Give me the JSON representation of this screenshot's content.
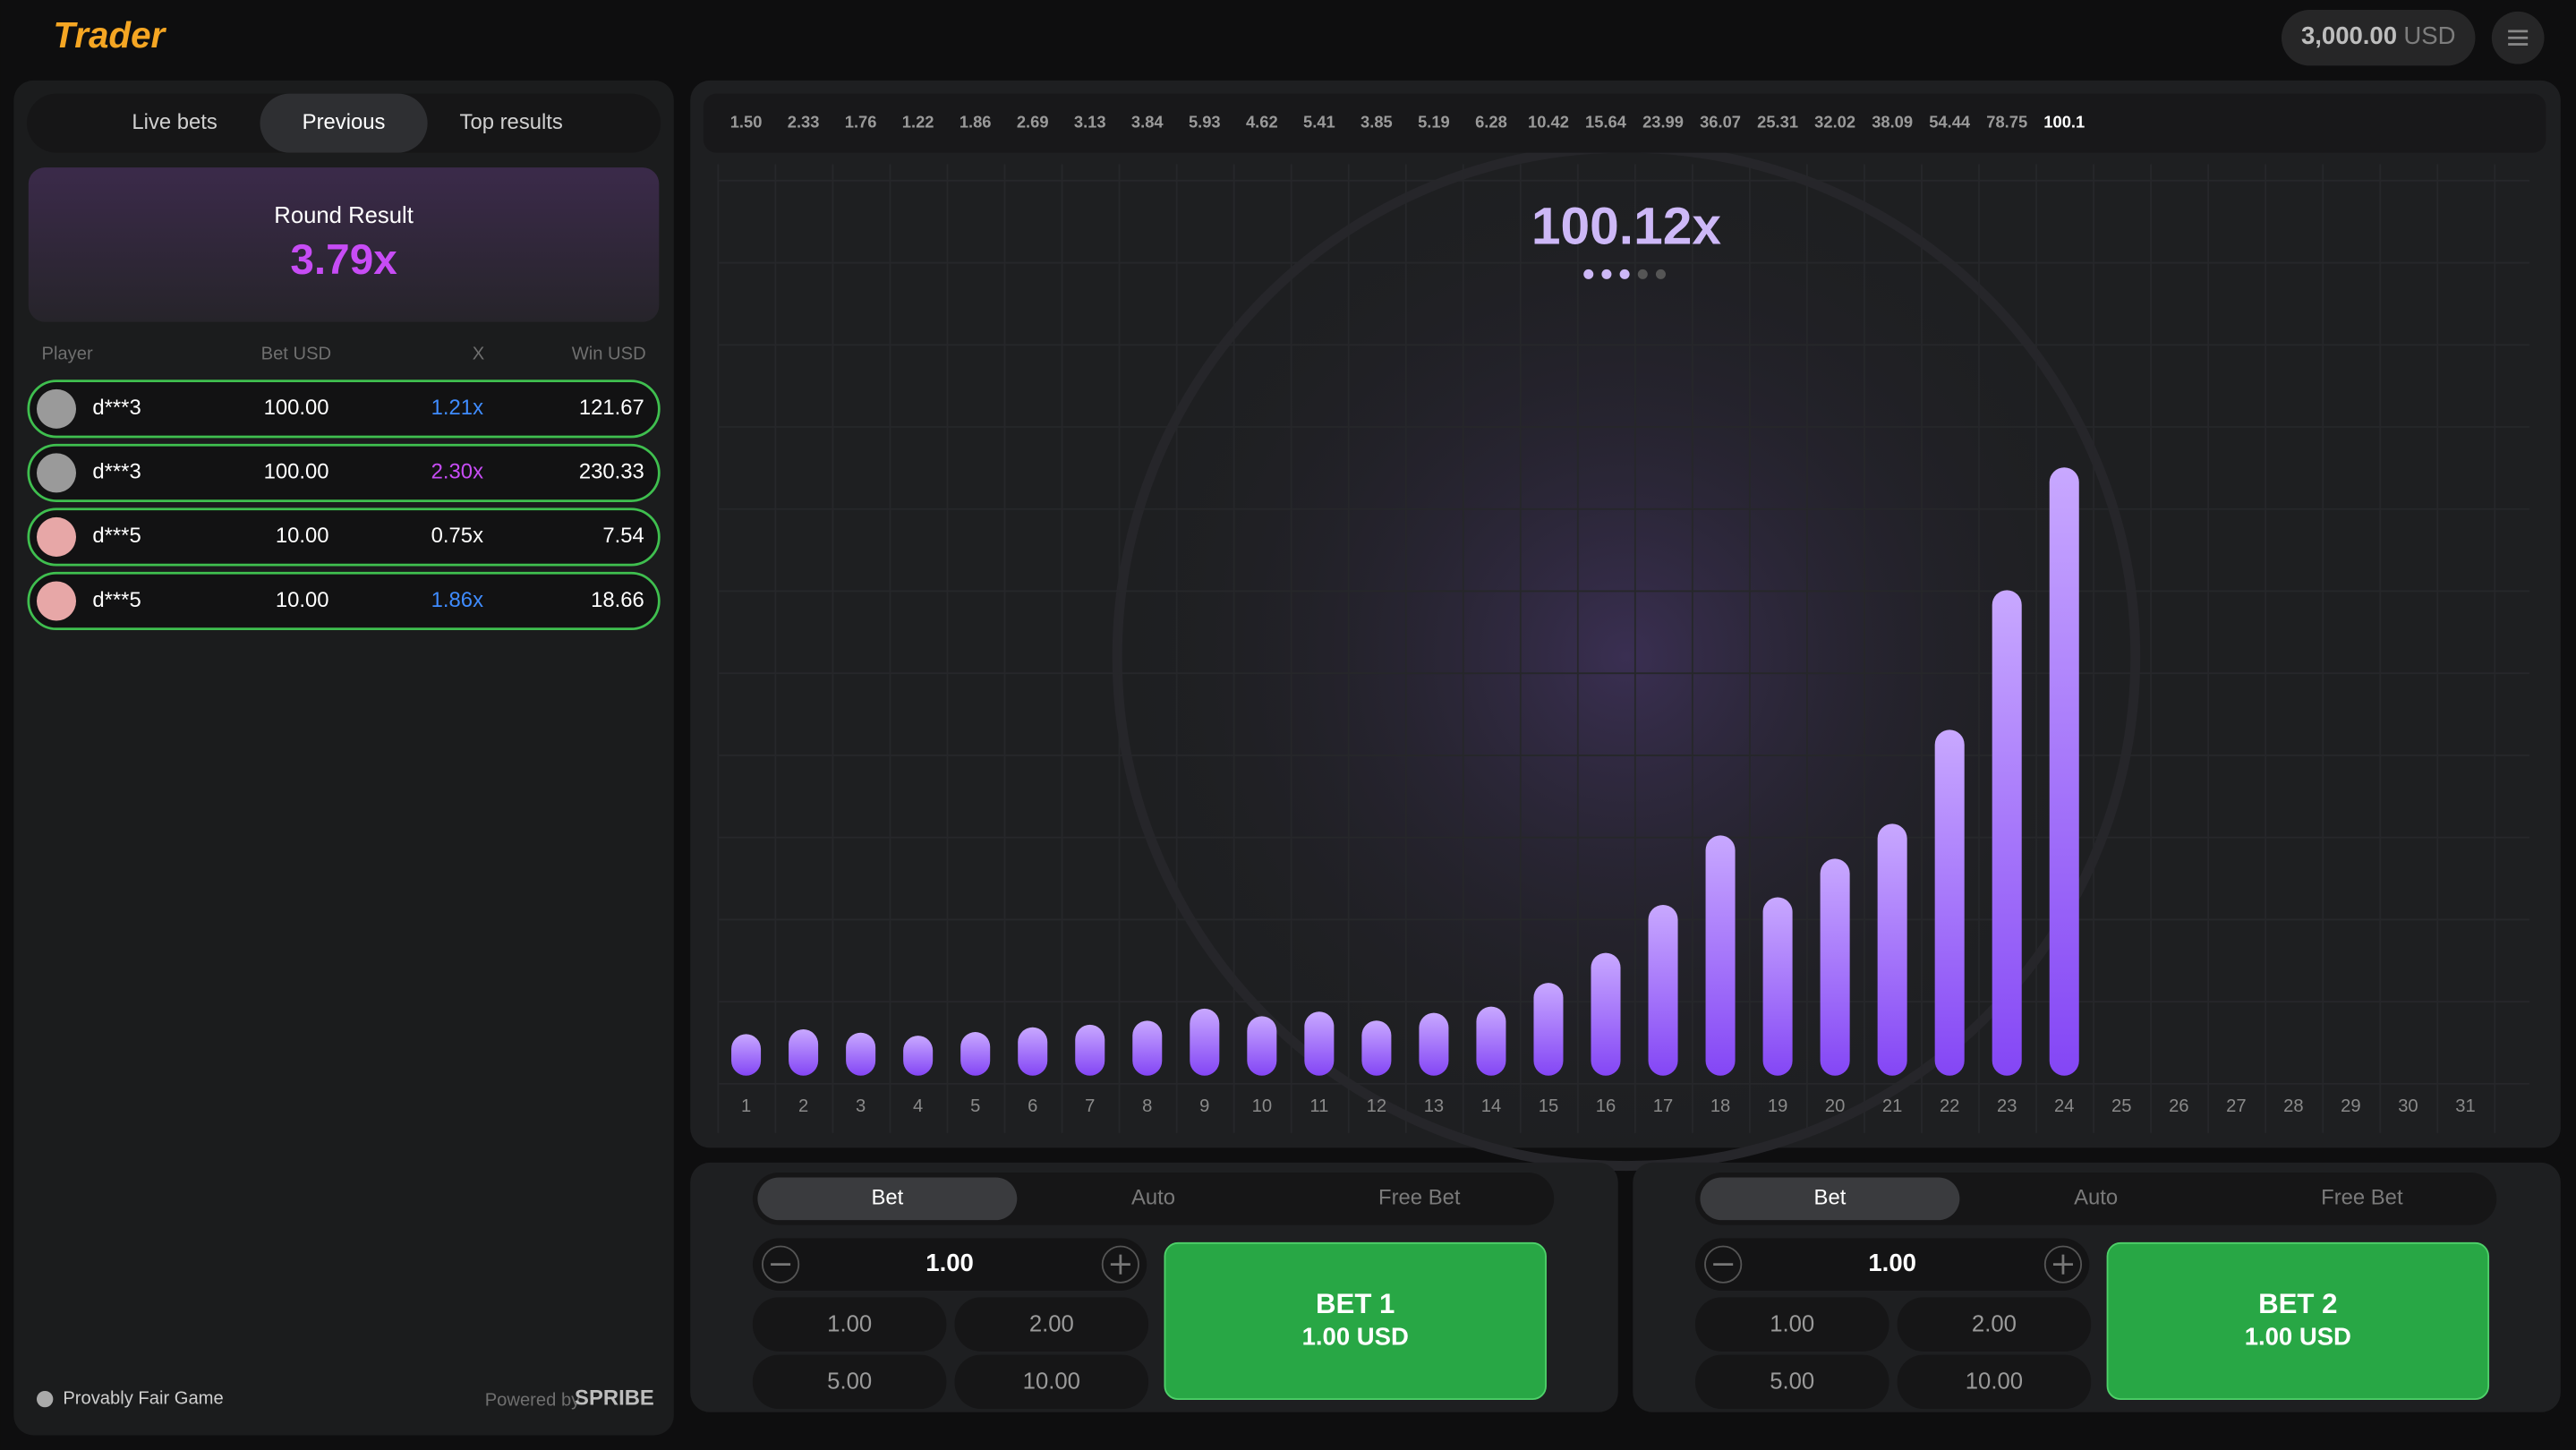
{
  "header": {
    "logo": "Trader",
    "balance": "3,000.00",
    "currency": "USD"
  },
  "bets_panel": {
    "tabs": [
      "Live bets",
      "Previous",
      "Top results"
    ],
    "round_result_label": "Round Result",
    "round_result": "3.79x",
    "columns": [
      "Player",
      "Bet USD",
      "X",
      "Win USD"
    ],
    "rows": [
      {
        "player": "d***3",
        "bet": "100.00",
        "x": "1.21x",
        "win": "121.67",
        "x_color": "#3f8cff"
      },
      {
        "player": "d***3",
        "bet": "100.00",
        "x": "2.30x",
        "win": "230.33",
        "x_color": "#c74cf5"
      },
      {
        "player": "d***5",
        "bet": "10.00",
        "x": "0.75x",
        "win": "7.54",
        "x_color": "#ffffff"
      },
      {
        "player": "d***5",
        "bet": "10.00",
        "x": "1.86x",
        "win": "18.66",
        "x_color": "#3f8cff"
      }
    ],
    "footer": {
      "fair": "Provably Fair Game",
      "powered": "Powered by",
      "brand": "SPRIBE"
    }
  },
  "game": {
    "history": [
      "1.50",
      "2.33",
      "1.76",
      "1.22",
      "1.86",
      "2.69",
      "3.13",
      "3.84",
      "5.93",
      "4.62",
      "5.41",
      "3.85",
      "5.19",
      "6.28",
      "10.42",
      "15.64",
      "23.99",
      "36.07",
      "25.31",
      "32.02",
      "38.09",
      "54.44",
      "78.75",
      "100.1"
    ],
    "multiplier": "100.12x",
    "rounds": [
      1,
      2,
      3,
      4,
      5,
      6,
      7,
      8,
      9,
      10,
      11,
      12,
      13,
      14,
      15,
      16,
      17,
      18,
      19,
      20,
      21,
      22,
      23,
      24,
      25,
      26,
      27,
      28,
      29,
      30,
      31
    ],
    "bar_color_top": "#c8a8ff",
    "bar_color_bottom": "#8446f5"
  },
  "bet_controls": [
    {
      "tabs": [
        "Bet",
        "Auto",
        "Free Bet"
      ],
      "amount": "1.00",
      "quick": [
        "1.00",
        "2.00",
        "5.00",
        "10.00"
      ],
      "button": "BET 1",
      "button_amount": "1.00 USD"
    },
    {
      "tabs": [
        "Bet",
        "Auto",
        "Free Bet"
      ],
      "amount": "1.00",
      "quick": [
        "1.00",
        "2.00",
        "5.00",
        "10.00"
      ],
      "button": "BET 2",
      "button_amount": "1.00 USD"
    }
  ]
}
